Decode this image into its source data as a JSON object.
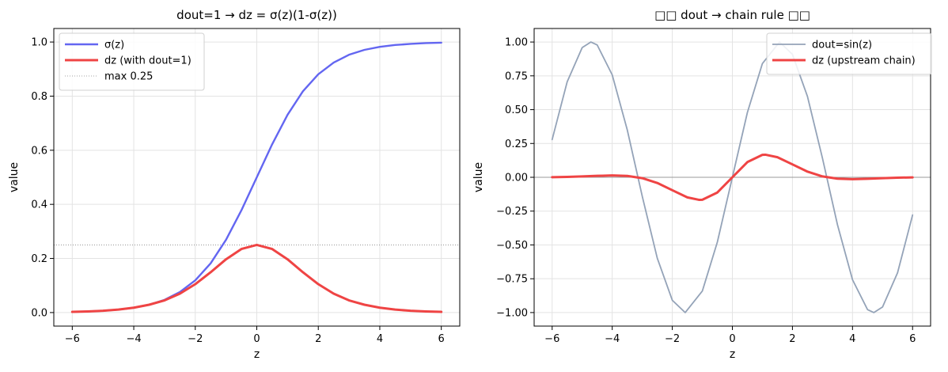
{
  "chart_data": [
    {
      "type": "line",
      "title": "dout=1 → dz = σ(z)(1-σ(z))",
      "xlabel": "z",
      "ylabel": "value",
      "xlim": [
        -6.6,
        6.6
      ],
      "ylim": [
        -0.05,
        1.05
      ],
      "xticks": [
        -6,
        -4,
        -2,
        0,
        2,
        4,
        6
      ],
      "xtick_labels": [
        "−6",
        "−4",
        "−2",
        "0",
        "2",
        "4",
        "6"
      ],
      "yticks": [
        0.0,
        0.2,
        0.4,
        0.6,
        0.8,
        1.0
      ],
      "ytick_labels": [
        "0.0",
        "0.2",
        "0.4",
        "0.6",
        "0.8",
        "1.0"
      ],
      "grid": true,
      "legend": "top-left",
      "series": [
        {
          "name": "σ(z)",
          "color": "#6366f1",
          "x": [
            -6,
            -5.5,
            -5,
            -4.5,
            -4,
            -3.5,
            -3,
            -2.5,
            -2,
            -1.5,
            -1,
            -0.5,
            0,
            0.5,
            1,
            1.5,
            2,
            2.5,
            3,
            3.5,
            4,
            4.5,
            5,
            5.5,
            6
          ],
          "y": [
            0.0025,
            0.0041,
            0.0067,
            0.011,
            0.018,
            0.029,
            0.047,
            0.076,
            0.119,
            0.182,
            0.269,
            0.378,
            0.5,
            0.622,
            0.731,
            0.818,
            0.881,
            0.924,
            0.953,
            0.971,
            0.982,
            0.989,
            0.993,
            0.996,
            0.9975
          ]
        },
        {
          "name": "dz (with dout=1)",
          "color": "#ef4444",
          "x": [
            -6,
            -5.5,
            -5,
            -4.5,
            -4,
            -3.5,
            -3,
            -2.5,
            -2,
            -1.5,
            -1,
            -0.5,
            0,
            0.5,
            1,
            1.5,
            2,
            2.5,
            3,
            3.5,
            4,
            4.5,
            5,
            5.5,
            6
          ],
          "y": [
            0.0025,
            0.0041,
            0.0066,
            0.011,
            0.018,
            0.029,
            0.045,
            0.07,
            0.105,
            0.149,
            0.197,
            0.235,
            0.25,
            0.235,
            0.197,
            0.149,
            0.105,
            0.07,
            0.045,
            0.029,
            0.018,
            0.011,
            0.0066,
            0.0041,
            0.0025
          ]
        }
      ],
      "hlines": [
        {
          "name": "max 0.25",
          "y": 0.25,
          "color": "#888888"
        }
      ]
    },
    {
      "type": "line",
      "title": "□□ dout → chain rule □□",
      "xlabel": "z",
      "ylabel": "value",
      "xlim": [
        -6.6,
        6.6
      ],
      "ylim": [
        -1.1,
        1.1
      ],
      "xticks": [
        -6,
        -4,
        -2,
        0,
        2,
        4,
        6
      ],
      "xtick_labels": [
        "−6",
        "−4",
        "−2",
        "0",
        "2",
        "4",
        "6"
      ],
      "yticks": [
        -1.0,
        -0.75,
        -0.5,
        -0.25,
        0.0,
        0.25,
        0.5,
        0.75,
        1.0
      ],
      "ytick_labels": [
        "−1.00",
        "−0.75",
        "−0.50",
        "−0.25",
        "0.00",
        "0.25",
        "0.50",
        "0.75",
        "1.00"
      ],
      "grid": true,
      "legend": "top-right",
      "series": [
        {
          "name": "dout=sin(z)",
          "color": "#94a3b8",
          "x": [
            -6,
            -5.5,
            -5,
            -4.712,
            -4.5,
            -4,
            -3.5,
            -3,
            -2.5,
            -2,
            -1.571,
            -1,
            -0.5,
            0,
            0.5,
            1,
            1.571,
            2,
            2.5,
            3,
            3.5,
            4,
            4.5,
            4.712,
            5,
            5.5,
            6
          ],
          "y": [
            0.279,
            0.706,
            0.959,
            1.0,
            0.978,
            0.757,
            0.351,
            -0.141,
            -0.598,
            -0.909,
            -1.0,
            -0.841,
            -0.479,
            0.0,
            0.479,
            0.841,
            1.0,
            0.909,
            0.598,
            0.141,
            -0.351,
            -0.757,
            -0.978,
            -1.0,
            -0.959,
            -0.706,
            -0.279
          ]
        },
        {
          "name": "dz (upstream chain)",
          "color": "#ef4444",
          "x": [
            -6,
            -5.5,
            -5,
            -4.5,
            -4,
            -3.5,
            -3,
            -2.5,
            -2,
            -1.5,
            -1.1,
            -1,
            -0.5,
            0,
            0.5,
            1,
            1.1,
            1.5,
            2,
            2.5,
            3,
            3.5,
            4,
            4.5,
            5,
            5.5,
            6
          ],
          "y": [
            0.0007,
            0.0029,
            0.0064,
            0.0107,
            0.0136,
            0.0102,
            -0.0063,
            -0.0419,
            -0.0955,
            -0.1486,
            -0.1671,
            -0.1659,
            -0.1126,
            0.0,
            0.1126,
            0.1659,
            0.1671,
            0.1486,
            0.0955,
            0.0419,
            0.0063,
            -0.0102,
            -0.0136,
            -0.0107,
            -0.0064,
            -0.0029,
            -0.0007
          ]
        }
      ],
      "hlines": [
        {
          "y": 0.0,
          "color": "#999999"
        }
      ]
    }
  ]
}
